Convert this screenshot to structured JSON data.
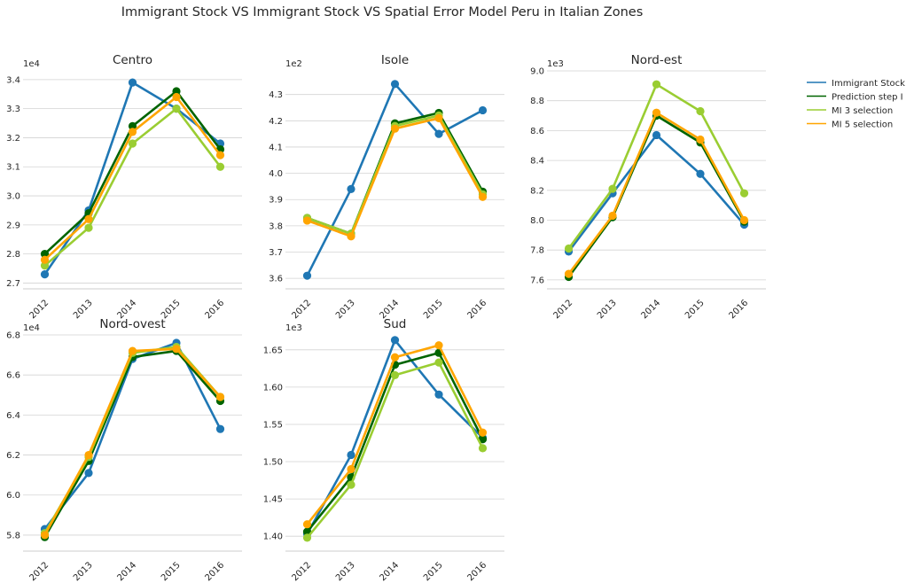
{
  "figure": {
    "title": "Immigrant Stock VS Immigrant Stock VS Spatial Error Model Peru in Italian Zones"
  },
  "legend": {
    "position": "right",
    "entries": [
      {
        "label": "Immigrant Stock",
        "color": "#1f77b4"
      },
      {
        "label": "Prediction step I",
        "color": "#006400"
      },
      {
        "label": "MI 3 selection",
        "color": "#9acd32"
      },
      {
        "label": "MI 5 selection",
        "color": "#ffa500"
      }
    ]
  },
  "chart_data": [
    {
      "type": "line",
      "title": "Centro",
      "categories": [
        "2012",
        "2013",
        "2014",
        "2015",
        "2016"
      ],
      "multiplier": "1e4",
      "ylim": [
        2.68,
        3.43
      ],
      "yticks": [
        2.7,
        2.8,
        2.9,
        3.0,
        3.1,
        3.2,
        3.3,
        3.4
      ],
      "ytick_labels": [
        "2.7",
        "2.8",
        "2.9",
        "3.0",
        "3.1",
        "3.2",
        "3.3",
        "3.4"
      ],
      "series": [
        {
          "name": "Immigrant Stock",
          "values": [
            2.73,
            2.95,
            3.39,
            3.3,
            3.18
          ]
        },
        {
          "name": "Prediction step I",
          "values": [
            2.8,
            2.94,
            3.24,
            3.36,
            3.16
          ]
        },
        {
          "name": "MI 3 selection",
          "values": [
            2.76,
            2.89,
            3.18,
            3.3,
            3.1
          ]
        },
        {
          "name": "MI 5 selection",
          "values": [
            2.78,
            2.92,
            3.22,
            3.34,
            3.14
          ]
        }
      ],
      "grid": true
    },
    {
      "type": "line",
      "title": "Isole",
      "categories": [
        "2012",
        "2013",
        "2014",
        "2015",
        "2016"
      ],
      "multiplier": "1e2",
      "ylim": [
        3.56,
        4.39
      ],
      "yticks": [
        3.6,
        3.7,
        3.8,
        3.9,
        4.0,
        4.1,
        4.2,
        4.3
      ],
      "ytick_labels": [
        "3.6",
        "3.7",
        "3.8",
        "3.9",
        "4.0",
        "4.1",
        "4.2",
        "4.3"
      ],
      "series": [
        {
          "name": "Immigrant Stock",
          "values": [
            3.61,
            3.94,
            4.34,
            4.15,
            4.24
          ]
        },
        {
          "name": "Prediction step I",
          "values": [
            3.83,
            3.77,
            4.19,
            4.23,
            3.93
          ]
        },
        {
          "name": "MI 3 selection",
          "values": [
            3.83,
            3.77,
            4.18,
            4.22,
            3.92
          ]
        },
        {
          "name": "MI 5 selection",
          "values": [
            3.82,
            3.76,
            4.17,
            4.21,
            3.91
          ]
        }
      ],
      "grid": true
    },
    {
      "type": "line",
      "title": "Nord-est",
      "categories": [
        "2012",
        "2013",
        "2014",
        "2015",
        "2016"
      ],
      "multiplier": "1e3",
      "ylim": [
        7.54,
        9.0
      ],
      "yticks": [
        7.6,
        7.8,
        8.0,
        8.2,
        8.4,
        8.6,
        8.8,
        9.0
      ],
      "ytick_labels": [
        "7.6",
        "7.8",
        "8.0",
        "8.2",
        "8.4",
        "8.6",
        "8.8",
        "9.0"
      ],
      "series": [
        {
          "name": "Immigrant Stock",
          "values": [
            7.79,
            8.18,
            8.57,
            8.31,
            7.97
          ]
        },
        {
          "name": "Prediction step I",
          "values": [
            7.62,
            8.02,
            8.7,
            8.52,
            7.99
          ]
        },
        {
          "name": "MI 3 selection",
          "values": [
            7.81,
            8.21,
            8.91,
            8.73,
            8.18
          ]
        },
        {
          "name": "MI 5 selection",
          "values": [
            7.64,
            8.03,
            8.72,
            8.54,
            8.0
          ]
        }
      ],
      "grid": true
    },
    {
      "type": "line",
      "title": "Nord-ovest",
      "categories": [
        "2012",
        "2013",
        "2014",
        "2015",
        "2016"
      ],
      "multiplier": "1e4",
      "ylim": [
        5.72,
        6.8
      ],
      "yticks": [
        5.8,
        6.0,
        6.2,
        6.4,
        6.6,
        6.8
      ],
      "ytick_labels": [
        "5.8",
        "6.0",
        "6.2",
        "6.4",
        "6.6",
        "6.8"
      ],
      "series": [
        {
          "name": "Immigrant Stock",
          "values": [
            5.83,
            6.11,
            6.68,
            6.76,
            6.33
          ]
        },
        {
          "name": "Prediction step I",
          "values": [
            5.79,
            6.17,
            6.69,
            6.72,
            6.47
          ]
        },
        {
          "name": "MI 3 selection",
          "values": [
            5.81,
            6.19,
            6.71,
            6.74,
            6.49
          ]
        },
        {
          "name": "MI 5 selection",
          "values": [
            5.8,
            6.2,
            6.72,
            6.73,
            6.49
          ]
        }
      ],
      "grid": true
    },
    {
      "type": "line",
      "title": "Sud",
      "categories": [
        "2012",
        "2013",
        "2014",
        "2015",
        "2016"
      ],
      "multiplier": "1e3",
      "ylim": [
        1.38,
        1.67
      ],
      "yticks": [
        1.4,
        1.45,
        1.5,
        1.55,
        1.6,
        1.65
      ],
      "ytick_labels": [
        "1.40",
        "1.45",
        "1.50",
        "1.55",
        "1.60",
        "1.65"
      ],
      "series": [
        {
          "name": "Immigrant Stock",
          "values": [
            1.403,
            1.509,
            1.663,
            1.59,
            1.532
          ]
        },
        {
          "name": "Prediction step I",
          "values": [
            1.406,
            1.479,
            1.63,
            1.646,
            1.53
          ]
        },
        {
          "name": "MI 3 selection",
          "values": [
            1.398,
            1.469,
            1.616,
            1.633,
            1.518
          ]
        },
        {
          "name": "MI 5 selection",
          "values": [
            1.416,
            1.49,
            1.64,
            1.656,
            1.539
          ]
        }
      ],
      "grid": true
    }
  ]
}
